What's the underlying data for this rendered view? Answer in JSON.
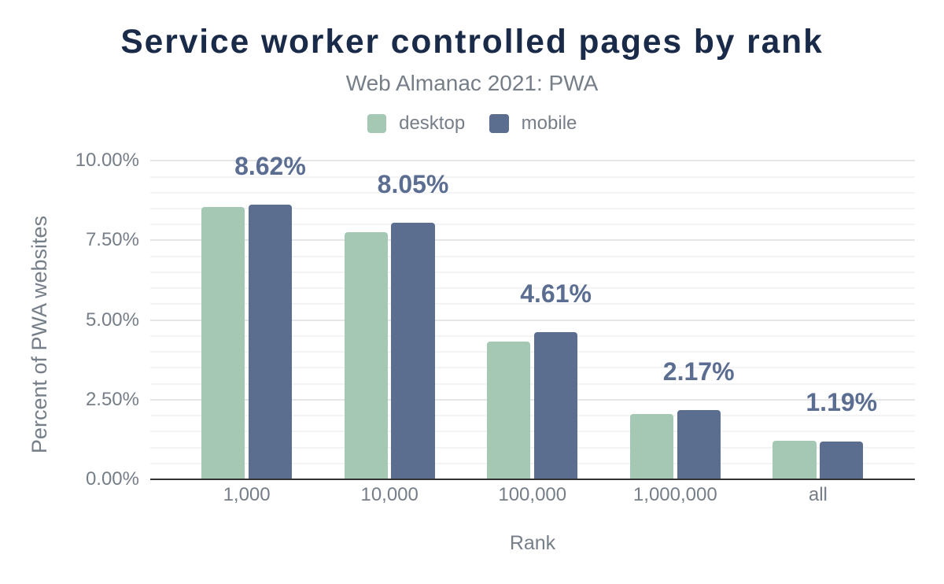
{
  "chart_data": {
    "type": "bar",
    "title": "Service worker controlled pages by rank",
    "subtitle": "Web Almanac 2021: PWA",
    "xlabel": "Rank",
    "ylabel": "Percent of PWA websites",
    "categories": [
      "1,000",
      "10,000",
      "100,000",
      "1,000,000",
      "all"
    ],
    "series": [
      {
        "name": "desktop",
        "color": "#a4c8b3",
        "values": [
          8.55,
          7.76,
          4.33,
          2.04,
          1.2
        ]
      },
      {
        "name": "mobile",
        "color": "#5b6e90",
        "values": [
          8.62,
          8.05,
          4.61,
          2.17,
          1.19
        ]
      }
    ],
    "annotations": {
      "series": "mobile",
      "labels": [
        "8.62%",
        "8.05%",
        "4.61%",
        "2.17%",
        "1.19%"
      ]
    },
    "yticks": [
      {
        "value": 0,
        "label": "0.00%"
      },
      {
        "value": 2.5,
        "label": "2.50%"
      },
      {
        "value": 5,
        "label": "5.00%"
      },
      {
        "value": 7.5,
        "label": "7.50%"
      },
      {
        "value": 10,
        "label": "10.00%"
      }
    ],
    "ylim": [
      0,
      10
    ],
    "grid": {
      "major_step": 2.5,
      "minor_step": 0.5,
      "major_color": "#e6e6e6",
      "minor_color": "#f4f4f4"
    },
    "legend_position": "top",
    "colors": {
      "title": "#1a2b49",
      "text_gray": "#767e88",
      "annotation": "#5b6e91",
      "axis_line": "#333333"
    }
  }
}
